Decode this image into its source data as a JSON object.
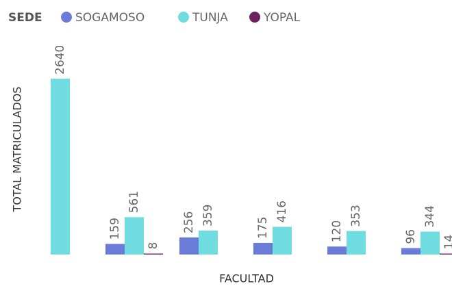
{
  "chart_data": {
    "type": "bar",
    "legend_title": "SEDE",
    "ylabel": "TOTAL MATRICULADOS",
    "xlabel": "FACULTAD",
    "categories": [
      null,
      null,
      null,
      null,
      null,
      null
    ],
    "series": [
      {
        "name": "SOGAMOSO",
        "color": "#6b7bd8",
        "values": [
          null,
          159,
          256,
          175,
          120,
          96
        ]
      },
      {
        "name": "TUNJA",
        "color": "#6fdde0",
        "values": [
          2640,
          561,
          359,
          416,
          353,
          344
        ]
      },
      {
        "name": "YOPAL",
        "color": "#6b2060",
        "values": [
          null,
          8,
          null,
          null,
          null,
          14
        ]
      }
    ]
  }
}
